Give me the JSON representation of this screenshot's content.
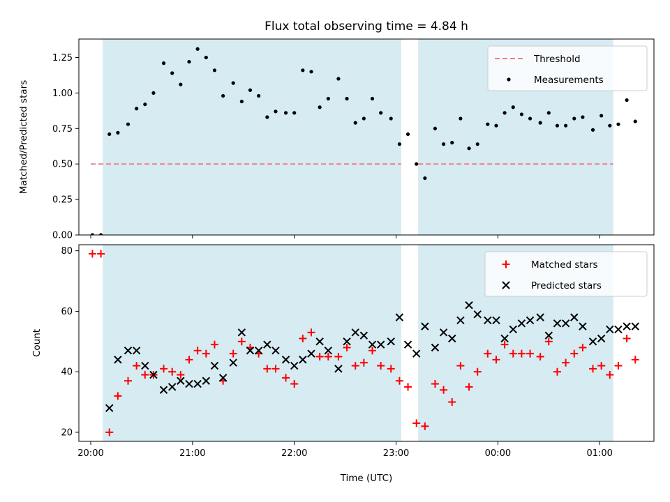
{
  "chart_data": [
    {
      "type": "scatter",
      "title": "Flux total observing time = 4.84 h",
      "xlabel": "",
      "ylabel": "Matched/Predicted stars",
      "xlim": [
        "19:53",
        "01:32"
      ],
      "ylim": [
        0,
        1.38
      ],
      "yticks": [
        0.0,
        0.25,
        0.5,
        0.75,
        1.0,
        1.25
      ],
      "ytick_labels": [
        "0.00",
        "0.25",
        "0.50",
        "0.75",
        "1.00",
        "1.25"
      ],
      "xticks": [
        "20:00",
        "21:00",
        "22:00",
        "23:00",
        "00:00",
        "01:00"
      ],
      "shaded_intervals": [
        [
          "20:07",
          "23:03"
        ],
        [
          "23:13",
          "01:08"
        ]
      ],
      "shade_color": "#add8e6",
      "legend": {
        "position": "top-right",
        "entries": [
          {
            "label": "Threshold",
            "style": "dashed-line",
            "color": "#f08080"
          },
          {
            "label": "Measurements",
            "style": "dot",
            "color": "#000000"
          }
        ]
      },
      "series": [
        {
          "name": "Threshold",
          "style": "dashed-line",
          "color": "#f08080",
          "x": [
            "20:00",
            "23:03",
            "23:13",
            "01:08"
          ],
          "y": [
            0.5,
            0.5,
            0.5,
            0.5
          ]
        },
        {
          "name": "Measurements",
          "style": "dot",
          "color": "#000000",
          "x": [
            "20:01",
            "20:06",
            "20:11",
            "20:16",
            "20:22",
            "20:27",
            "20:32",
            "20:37",
            "20:43",
            "20:48",
            "20:53",
            "20:58",
            "21:03",
            "21:08",
            "21:13",
            "21:18",
            "21:24",
            "21:29",
            "21:34",
            "21:39",
            "21:44",
            "21:49",
            "21:55",
            "22:00",
            "22:05",
            "22:10",
            "22:15",
            "22:20",
            "22:26",
            "22:31",
            "22:36",
            "22:41",
            "22:46",
            "22:51",
            "22:57",
            "23:02",
            "23:07",
            "23:12",
            "23:17",
            "23:23",
            "23:28",
            "23:33",
            "23:38",
            "23:43",
            "23:48",
            "23:54",
            "23:59",
            "00:04",
            "00:09",
            "00:14",
            "00:19",
            "00:25",
            "00:30",
            "00:35",
            "00:40",
            "00:45",
            "00:50",
            "00:56",
            "01:01",
            "01:06",
            "01:11",
            "01:16",
            "01:21"
          ],
          "y": [
            0.0,
            0.0,
            0.71,
            0.72,
            0.78,
            0.89,
            0.92,
            1.0,
            1.21,
            1.14,
            1.06,
            1.22,
            1.31,
            1.25,
            1.16,
            0.98,
            1.07,
            0.94,
            1.02,
            0.98,
            0.83,
            0.87,
            0.86,
            0.86,
            1.16,
            1.15,
            0.9,
            0.96,
            1.1,
            0.96,
            0.79,
            0.82,
            0.96,
            0.86,
            0.82,
            0.64,
            0.71,
            0.5,
            0.4,
            0.75,
            0.64,
            0.65,
            0.82,
            0.61,
            0.64,
            0.78,
            0.77,
            0.86,
            0.9,
            0.85,
            0.82,
            0.79,
            0.86,
            0.77,
            0.77,
            0.82,
            0.83,
            0.74,
            0.84,
            0.77,
            0.78,
            0.95,
            0.8
          ]
        }
      ]
    },
    {
      "type": "scatter",
      "title": "",
      "xlabel": "Time (UTC)",
      "ylabel": "Count",
      "xlim": [
        "19:53",
        "01:32"
      ],
      "ylim": [
        17,
        82
      ],
      "yticks": [
        20,
        40,
        60,
        80
      ],
      "ytick_labels": [
        "20",
        "40",
        "60",
        "80"
      ],
      "xticks": [
        "20:00",
        "21:00",
        "22:00",
        "23:00",
        "00:00",
        "01:00"
      ],
      "xtick_labels": [
        "20:00",
        "21:00",
        "22:00",
        "23:00",
        "00:00",
        "01:00"
      ],
      "shaded_intervals": [
        [
          "20:07",
          "23:03"
        ],
        [
          "23:13",
          "01:08"
        ]
      ],
      "shade_color": "#add8e6",
      "legend": {
        "position": "top-right",
        "entries": [
          {
            "label": "Matched stars",
            "style": "plus",
            "color": "#ff0000"
          },
          {
            "label": "Predicted stars",
            "style": "x",
            "color": "#000000"
          }
        ]
      },
      "series": [
        {
          "name": "Matched stars",
          "style": "plus",
          "color": "#ff0000",
          "x": [
            "20:01",
            "20:06",
            "20:11",
            "20:16",
            "20:22",
            "20:27",
            "20:32",
            "20:37",
            "20:43",
            "20:48",
            "20:53",
            "20:58",
            "21:03",
            "21:08",
            "21:13",
            "21:18",
            "21:24",
            "21:29",
            "21:34",
            "21:39",
            "21:44",
            "21:49",
            "21:55",
            "22:00",
            "22:05",
            "22:10",
            "22:15",
            "22:20",
            "22:26",
            "22:31",
            "22:36",
            "22:41",
            "22:46",
            "22:51",
            "22:57",
            "23:02",
            "23:07",
            "23:12",
            "23:17",
            "23:23",
            "23:28",
            "23:33",
            "23:38",
            "23:43",
            "23:48",
            "23:54",
            "23:59",
            "00:04",
            "00:09",
            "00:14",
            "00:19",
            "00:25",
            "00:30",
            "00:35",
            "00:40",
            "00:45",
            "00:50",
            "00:56",
            "01:01",
            "01:06",
            "01:11",
            "01:16",
            "01:21"
          ],
          "y": [
            79,
            79,
            20,
            32,
            37,
            42,
            39,
            39,
            41,
            40,
            39,
            44,
            47,
            46,
            49,
            37,
            46,
            50,
            48,
            46,
            41,
            41,
            38,
            36,
            51,
            53,
            45,
            45,
            45,
            48,
            42,
            43,
            47,
            42,
            41,
            37,
            35,
            23,
            22,
            36,
            34,
            30,
            42,
            35,
            40,
            46,
            44,
            49,
            46,
            46,
            46,
            45,
            50,
            40,
            43,
            46,
            48,
            41,
            42,
            39,
            42,
            51,
            44
          ]
        },
        {
          "name": "Predicted stars",
          "style": "x",
          "color": "#000000",
          "x": [
            "20:11",
            "20:16",
            "20:22",
            "20:27",
            "20:32",
            "20:37",
            "20:43",
            "20:48",
            "20:53",
            "20:58",
            "21:03",
            "21:08",
            "21:13",
            "21:18",
            "21:24",
            "21:29",
            "21:34",
            "21:39",
            "21:44",
            "21:49",
            "21:55",
            "22:00",
            "22:05",
            "22:10",
            "22:15",
            "22:20",
            "22:26",
            "22:31",
            "22:36",
            "22:41",
            "22:46",
            "22:51",
            "22:57",
            "23:02",
            "23:07",
            "23:12",
            "23:17",
            "23:23",
            "23:28",
            "23:33",
            "23:38",
            "23:43",
            "23:48",
            "23:54",
            "23:59",
            "00:04",
            "00:09",
            "00:14",
            "00:19",
            "00:25",
            "00:30",
            "00:35",
            "00:40",
            "00:45",
            "00:50",
            "00:56",
            "01:01",
            "01:06",
            "01:11",
            "01:16",
            "01:21"
          ],
          "y": [
            28,
            44,
            47,
            47,
            42,
            39,
            34,
            35,
            37,
            36,
            36,
            37,
            42,
            38,
            43,
            53,
            47,
            47,
            49,
            47,
            44,
            42,
            44,
            46,
            50,
            47,
            41,
            50,
            53,
            52,
            49,
            49,
            50,
            58,
            49,
            46,
            55,
            48,
            53,
            51,
            57,
            62,
            59,
            57,
            57,
            51,
            54,
            56,
            57,
            58,
            52,
            56,
            56,
            58,
            55,
            50,
            51,
            54,
            54,
            55,
            55
          ]
        }
      ]
    }
  ]
}
